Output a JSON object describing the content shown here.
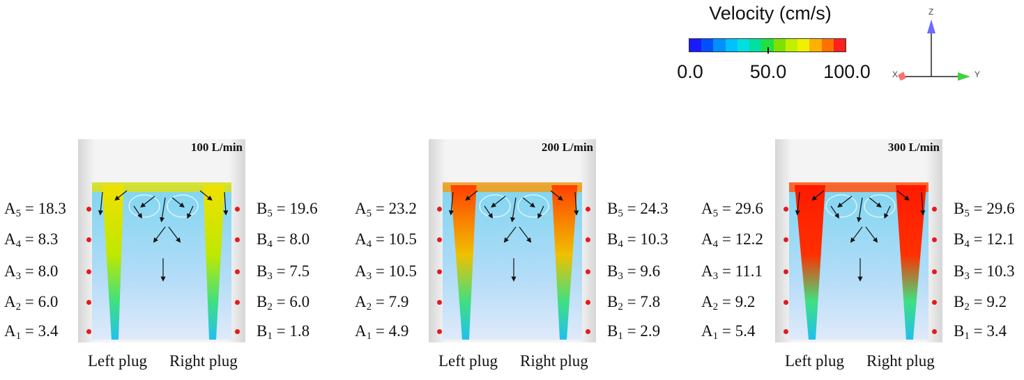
{
  "legend": {
    "title": "Velocity (cm/s)",
    "ticks": [
      "0.0",
      "50.0",
      "100.0"
    ],
    "colors": [
      "#1a1aff",
      "#0050ff",
      "#0090ff",
      "#00c0ff",
      "#00e0e0",
      "#00e0a0",
      "#20e040",
      "#80e000",
      "#c0f000",
      "#f0f000",
      "#ffb000",
      "#ff7000",
      "#ff2020"
    ]
  },
  "axes": {
    "z": "Z",
    "x": "X",
    "y": "Y"
  },
  "panels": [
    {
      "flow": "100 L/min",
      "intensity": 0.35,
      "a": [
        [
          "A",
          "5",
          "18.3"
        ],
        [
          "A",
          "4",
          "8.3"
        ],
        [
          "A",
          "3",
          "8.0"
        ],
        [
          "A",
          "2",
          "6.0"
        ],
        [
          "A",
          "1",
          "3.4"
        ]
      ],
      "b": [
        [
          "B",
          "5",
          "19.6"
        ],
        [
          "B",
          "4",
          "8.0"
        ],
        [
          "B",
          "3",
          "7.5"
        ],
        [
          "B",
          "2",
          "6.0"
        ],
        [
          "B",
          "1",
          "1.8"
        ]
      ],
      "left_plug": "Left plug",
      "right_plug": "Right plug"
    },
    {
      "flow": "200 L/min",
      "intensity": 0.65,
      "a": [
        [
          "A",
          "5",
          "23.2"
        ],
        [
          "A",
          "4",
          "10.5"
        ],
        [
          "A",
          "3",
          "10.5"
        ],
        [
          "A",
          "2",
          "7.9"
        ],
        [
          "A",
          "1",
          "4.9"
        ]
      ],
      "b": [
        [
          "B",
          "5",
          "24.3"
        ],
        [
          "B",
          "4",
          "10.3"
        ],
        [
          "B",
          "3",
          "9.6"
        ],
        [
          "B",
          "2",
          "7.8"
        ],
        [
          "B",
          "1",
          "2.9"
        ]
      ],
      "left_plug": "Left plug",
      "right_plug": "Right plug"
    },
    {
      "flow": "300 L/min",
      "intensity": 1.0,
      "a": [
        [
          "A",
          "5",
          "29.6"
        ],
        [
          "A",
          "4",
          "12.2"
        ],
        [
          "A",
          "3",
          "11.1"
        ],
        [
          "A",
          "2",
          "9.2"
        ],
        [
          "A",
          "1",
          "5.4"
        ]
      ],
      "b": [
        [
          "B",
          "5",
          "29.6"
        ],
        [
          "B",
          "4",
          "12.1"
        ],
        [
          "B",
          "3",
          "10.3"
        ],
        [
          "B",
          "2",
          "9.2"
        ],
        [
          "B",
          "1",
          "3.4"
        ]
      ],
      "left_plug": "Left plug",
      "right_plug": "Right plug"
    }
  ]
}
